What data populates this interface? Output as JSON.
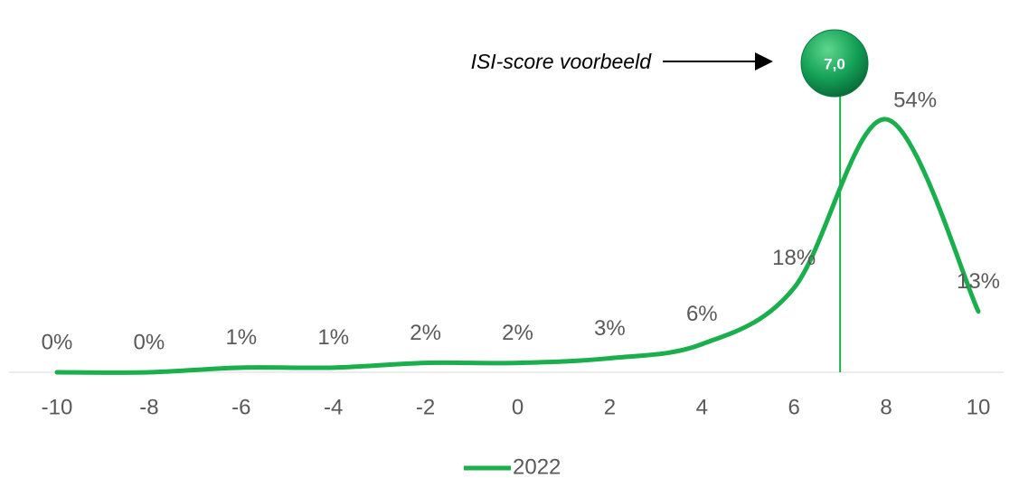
{
  "chart_data": {
    "type": "line",
    "x": [
      -10,
      -8,
      -6,
      -4,
      -2,
      0,
      2,
      4,
      6,
      8,
      10
    ],
    "xlim": [
      -10,
      10
    ],
    "xticks": [
      -10,
      -8,
      -6,
      -4,
      -2,
      0,
      2,
      4,
      6,
      8,
      10
    ],
    "series": [
      {
        "name": "2022",
        "color": "#1aae4c",
        "values": [
          0,
          0,
          1,
          1,
          2,
          2,
          3,
          6,
          18,
          54,
          13
        ],
        "value_labels": [
          "0%",
          "0%",
          "1%",
          "1%",
          "2%",
          "2%",
          "3%",
          "6%",
          "18%",
          "54%",
          "13%"
        ]
      }
    ],
    "reference_line": {
      "x": 7,
      "label": "7,0",
      "annotation": "ISI-score voorbeeld"
    },
    "legend": "bottom"
  }
}
